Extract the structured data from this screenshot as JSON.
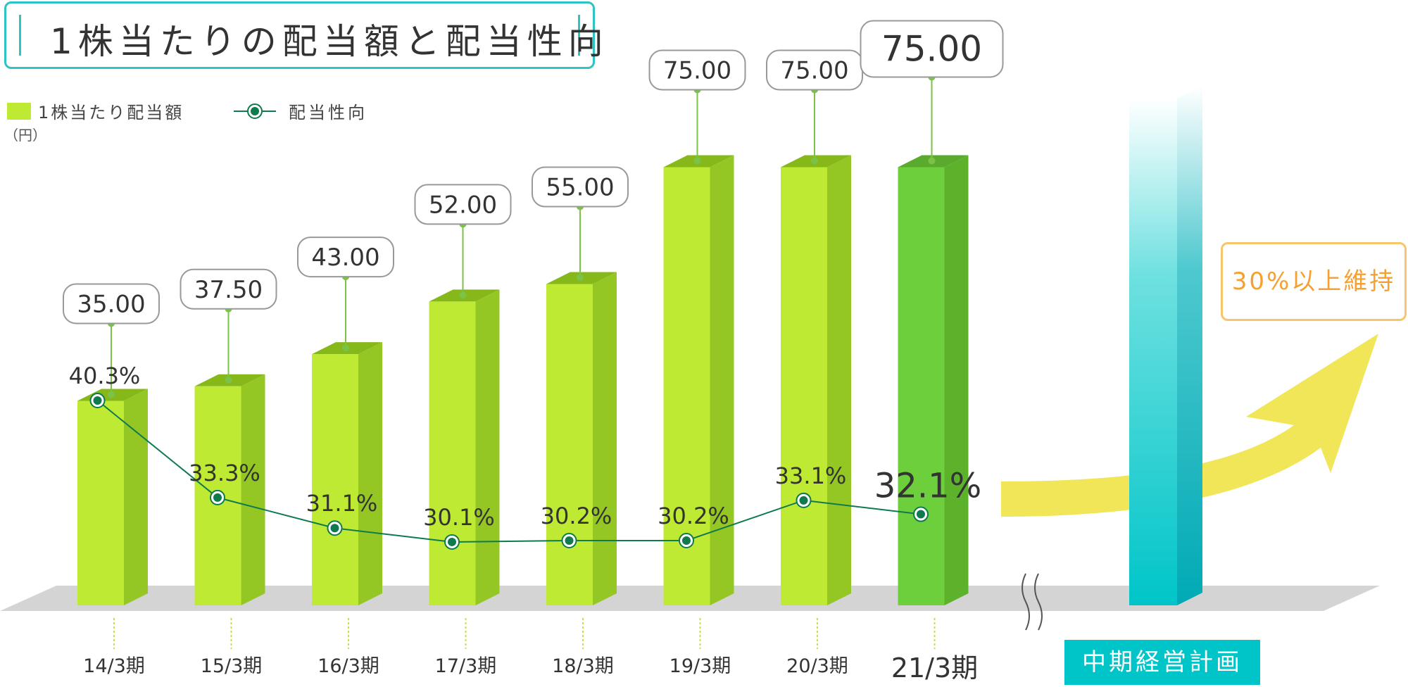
{
  "header": {
    "title": "1株当たりの配当額と配当性向"
  },
  "legend": {
    "bar_label": "1株当たり配当額",
    "line_label": "配当性向",
    "unit": "（円）"
  },
  "plan": {
    "label": "中期経営計画",
    "target": "30%以上維持"
  },
  "colors": {
    "bar": "#bfea33",
    "bar_highlight": "#6ccf3b",
    "line": "#0e7a4e",
    "plan_column": "#00c5c8",
    "arrow": "#f0e658",
    "accent": "#2ec4c4"
  },
  "chart_data": {
    "type": "bar",
    "categories": [
      "14/3期",
      "15/3期",
      "16/3期",
      "17/3期",
      "18/3期",
      "19/3期",
      "20/3期",
      "21/3期"
    ],
    "series": [
      {
        "name": "1株当たり配当額",
        "values": [
          35.0,
          37.5,
          43.0,
          52.0,
          55.0,
          75.0,
          75.0,
          75.0
        ],
        "labels": [
          "35.00",
          "37.50",
          "43.00",
          "52.00",
          "55.00",
          "75.00",
          "75.00",
          "75.00"
        ]
      },
      {
        "name": "配当性向",
        "type": "line",
        "values": [
          40.3,
          33.3,
          31.1,
          30.1,
          30.2,
          30.2,
          33.1,
          32.1
        ],
        "labels": [
          "40.3%",
          "33.3%",
          "31.1%",
          "30.1%",
          "30.2%",
          "30.2%",
          "33.1%",
          "32.1%"
        ]
      }
    ],
    "highlight_index": 7,
    "ylabel": "（円）",
    "grid": false
  }
}
